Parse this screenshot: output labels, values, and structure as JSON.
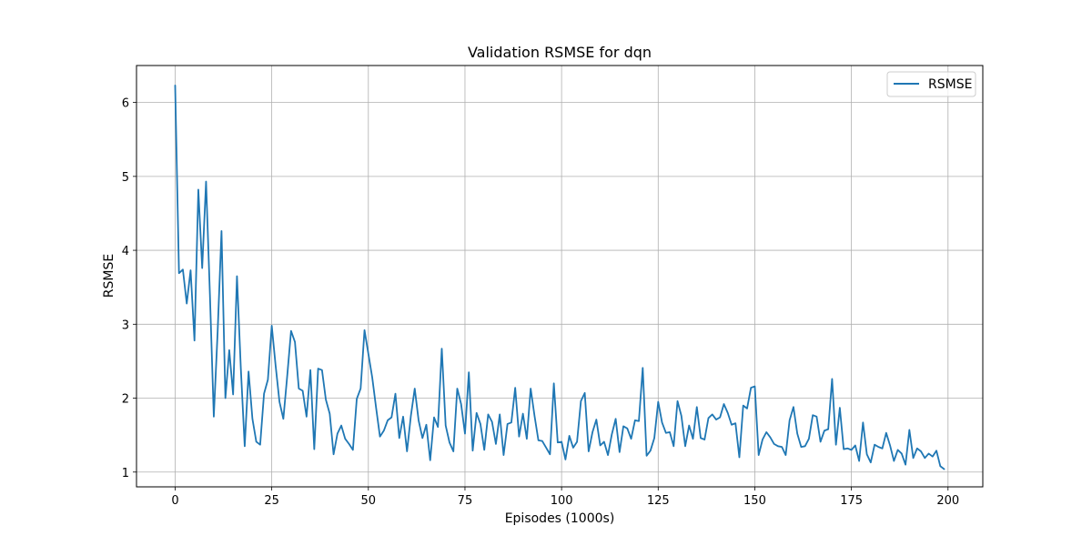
{
  "chart_data": {
    "type": "line",
    "title": "Validation RSMSE for dqn",
    "xlabel": "Episodes (1000s)",
    "ylabel": "RSMSE",
    "xlim": [
      -10,
      209
    ],
    "ylim": [
      0.8,
      6.5
    ],
    "xticks": [
      0,
      25,
      50,
      75,
      100,
      125,
      150,
      175,
      200
    ],
    "yticks": [
      1,
      2,
      3,
      4,
      5,
      6
    ],
    "grid": true,
    "legend_position": "top-right",
    "series": [
      {
        "name": "RSMSE",
        "color": "#1f77b4",
        "x": [
          0,
          1,
          2,
          3,
          4,
          5,
          6,
          7,
          8,
          9,
          10,
          11,
          12,
          13,
          14,
          15,
          16,
          17,
          18,
          19,
          20,
          21,
          22,
          23,
          24,
          25,
          26,
          27,
          28,
          29,
          30,
          31,
          32,
          33,
          34,
          35,
          36,
          37,
          38,
          39,
          40,
          41,
          42,
          43,
          44,
          45,
          46,
          47,
          48,
          49,
          50,
          51,
          52,
          53,
          54,
          55,
          56,
          57,
          58,
          59,
          60,
          61,
          62,
          63,
          64,
          65,
          66,
          67,
          68,
          69,
          70,
          71,
          72,
          73,
          74,
          75,
          76,
          77,
          78,
          79,
          80,
          81,
          82,
          83,
          84,
          85,
          86,
          87,
          88,
          89,
          90,
          91,
          92,
          93,
          94,
          95,
          96,
          97,
          98,
          99,
          100,
          101,
          102,
          103,
          104,
          105,
          106,
          107,
          108,
          109,
          110,
          111,
          112,
          113,
          114,
          115,
          116,
          117,
          118,
          119,
          120,
          121,
          122,
          123,
          124,
          125,
          126,
          127,
          128,
          129,
          130,
          131,
          132,
          133,
          134,
          135,
          136,
          137,
          138,
          139,
          140,
          141,
          142,
          143,
          144,
          145,
          146,
          147,
          148,
          149,
          150,
          151,
          152,
          153,
          154,
          155,
          156,
          157,
          158,
          159,
          160,
          161,
          162,
          163,
          164,
          165,
          166,
          167,
          168,
          169,
          170,
          171,
          172,
          173,
          174,
          175,
          176,
          177,
          178,
          179,
          180,
          181,
          182,
          183,
          184,
          185,
          186,
          187,
          188,
          189,
          190,
          191,
          192,
          193,
          194,
          195,
          196,
          197,
          198,
          199
        ],
        "values": [
          6.23,
          3.69,
          3.74,
          3.28,
          3.73,
          2.78,
          4.82,
          3.76,
          4.93,
          3.4,
          1.75,
          2.9,
          4.26,
          2.0,
          2.65,
          2.05,
          3.65,
          2.4,
          1.35,
          2.36,
          1.72,
          1.41,
          1.37,
          2.06,
          2.25,
          2.98,
          2.44,
          1.95,
          1.72,
          2.3,
          2.91,
          2.76,
          2.13,
          2.1,
          1.75,
          2.38,
          1.31,
          2.4,
          2.38,
          1.98,
          1.79,
          1.24,
          1.52,
          1.63,
          1.45,
          1.38,
          1.3,
          1.99,
          2.13,
          2.92,
          2.6,
          2.28,
          1.87,
          1.48,
          1.56,
          1.7,
          1.74,
          2.06,
          1.46,
          1.75,
          1.28,
          1.76,
          2.13,
          1.7,
          1.46,
          1.64,
          1.16,
          1.74,
          1.61,
          2.67,
          1.63,
          1.4,
          1.28,
          2.13,
          1.92,
          1.52,
          2.35,
          1.29,
          1.8,
          1.65,
          1.3,
          1.78,
          1.68,
          1.38,
          1.78,
          1.23,
          1.65,
          1.67,
          2.14,
          1.48,
          1.79,
          1.45,
          2.13,
          1.76,
          1.43,
          1.42,
          1.33,
          1.24,
          2.2,
          1.4,
          1.41,
          1.17,
          1.49,
          1.33,
          1.41,
          1.96,
          2.07,
          1.28,
          1.54,
          1.71,
          1.36,
          1.41,
          1.23,
          1.51,
          1.72,
          1.27,
          1.62,
          1.59,
          1.45,
          1.7,
          1.69,
          2.41,
          1.22,
          1.29,
          1.46,
          1.95,
          1.67,
          1.53,
          1.54,
          1.35,
          1.96,
          1.76,
          1.35,
          1.63,
          1.45,
          1.88,
          1.46,
          1.44,
          1.73,
          1.78,
          1.71,
          1.74,
          1.92,
          1.8,
          1.64,
          1.66,
          1.2,
          1.9,
          1.86,
          2.14,
          2.16,
          1.23,
          1.44,
          1.54,
          1.47,
          1.38,
          1.35,
          1.34,
          1.23,
          1.7,
          1.88,
          1.52,
          1.34,
          1.35,
          1.45,
          1.77,
          1.75,
          1.41,
          1.56,
          1.58,
          2.26,
          1.37,
          1.87,
          1.31,
          1.32,
          1.3,
          1.36,
          1.15,
          1.67,
          1.24,
          1.13,
          1.37,
          1.34,
          1.32,
          1.53,
          1.36,
          1.15,
          1.3,
          1.25,
          1.1,
          1.57,
          1.19,
          1.32,
          1.28,
          1.19,
          1.25,
          1.21,
          1.29,
          1.08,
          1.04
        ]
      }
    ]
  }
}
